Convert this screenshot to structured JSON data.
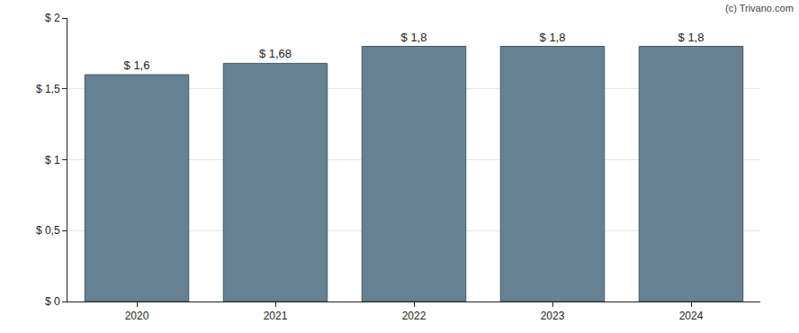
{
  "chart_data": {
    "type": "bar",
    "categories": [
      "2020",
      "2021",
      "2022",
      "2023",
      "2024"
    ],
    "values": [
      1.6,
      1.68,
      1.8,
      1.8,
      1.8
    ],
    "value_labels": [
      "$ 1,6",
      "$ 1,68",
      "$ 1,8",
      "$ 1,8",
      "$ 1,8"
    ],
    "data_labels": true,
    "color": "#668191",
    "ylim": [
      0,
      2
    ],
    "yticks": [
      {
        "value": 0,
        "label": "$ 0"
      },
      {
        "value": 0.5,
        "label": "$ 0,5"
      },
      {
        "value": 1,
        "label": "$ 1"
      },
      {
        "value": 1.5,
        "label": "$ 1,5"
      },
      {
        "value": 2,
        "label": "$ 2"
      }
    ],
    "grid": true,
    "annotations": [
      {
        "text": "(c) Trivano.com"
      }
    ]
  }
}
